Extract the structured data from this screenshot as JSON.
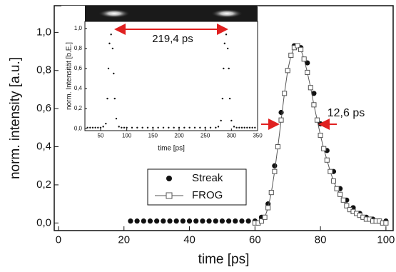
{
  "chart_data": [
    {
      "type": "scatter",
      "xlabel": "time [ps]",
      "ylabel": "norm. intensity [a.u.]",
      "annotations": [
        "12,6 ps"
      ],
      "xlim": [
        -1.3,
        102.2
      ],
      "ylim": [
        -0.04,
        1.14
      ],
      "xticks": [
        0,
        20,
        40,
        60,
        80,
        100
      ],
      "yticks": [
        {
          "value": 0,
          "label": "0,0"
        },
        {
          "value": 0.2,
          "label": "0,2"
        },
        {
          "value": 0.4,
          "label": "0,4"
        },
        {
          "value": 0.6,
          "label": "0,6"
        },
        {
          "value": 0.8,
          "label": "0,8"
        },
        {
          "value": 1.0,
          "label": "1,0"
        }
      ],
      "series": [
        {
          "name": "Streak",
          "color": "#111111",
          "marker": "circle",
          "line": false,
          "x": [
            22,
            24,
            26,
            28,
            30,
            32,
            34,
            36,
            38,
            40,
            42,
            44,
            46,
            48,
            50,
            52,
            54,
            56,
            58,
            60,
            62,
            64,
            66,
            68,
            70,
            72,
            74,
            76,
            78,
            80,
            82,
            84,
            86,
            88,
            90,
            92,
            94,
            96,
            98,
            100
          ],
          "values": [
            0.01,
            0.01,
            0.01,
            0.01,
            0.01,
            0.01,
            0.01,
            0.01,
            0.01,
            0.01,
            0.01,
            0.01,
            0.01,
            0.01,
            0.01,
            0.01,
            0.01,
            0.01,
            0.01,
            0.01,
            0.03,
            0.1,
            0.3,
            0.58,
            0.8,
            0.93,
            0.92,
            0.84,
            0.68,
            0.52,
            0.38,
            0.27,
            0.18,
            0.12,
            0.08,
            0.05,
            0.03,
            0.02,
            0.01,
            0.01
          ]
        },
        {
          "name": "FROG",
          "color": "#555555",
          "marker": "square",
          "line": true,
          "x": [
            60,
            61,
            62,
            63,
            64,
            65,
            66,
            67,
            68,
            69,
            70,
            71,
            72,
            73,
            74,
            75,
            76,
            77,
            78,
            79,
            80,
            81,
            82,
            83,
            84,
            85,
            86,
            87,
            88,
            89,
            90,
            91,
            92,
            93,
            94,
            95,
            96,
            97,
            98,
            99,
            100
          ],
          "values": [
            0,
            0,
            0.01,
            0.03,
            0.08,
            0.16,
            0.27,
            0.4,
            0.54,
            0.68,
            0.8,
            0.88,
            0.92,
            0.93,
            0.91,
            0.86,
            0.79,
            0.71,
            0.62,
            0.54,
            0.46,
            0.39,
            0.33,
            0.27,
            0.22,
            0.18,
            0.15,
            0.12,
            0.09,
            0.07,
            0.06,
            0.05,
            0.04,
            0.03,
            0.02,
            0.02,
            0.01,
            0.01,
            0.01,
            0,
            0
          ]
        }
      ]
    },
    {
      "type": "scatter",
      "xlabel": "time [ps]",
      "ylabel": "norm. Intensität [b.E.]",
      "annotations": [
        "219,4 ps"
      ],
      "xlim": [
        20,
        350
      ],
      "ylim": [
        -0.02,
        1.07
      ],
      "xticks": [
        50,
        100,
        150,
        200,
        250,
        300,
        350
      ],
      "yticks": [
        {
          "value": 0,
          "label": "0,0"
        },
        {
          "value": 0.2,
          "label": "0,2"
        },
        {
          "value": 0.4,
          "label": "0,4"
        },
        {
          "value": 0.6,
          "label": "0,6"
        },
        {
          "value": 0.8,
          "label": "0,8"
        },
        {
          "value": 1.0,
          "label": "1,0"
        }
      ],
      "series": [
        {
          "color": "#111111",
          "marker": "circle",
          "line": false,
          "x": [
            25,
            30,
            35,
            40,
            45,
            50,
            55,
            60,
            63,
            65,
            67,
            70,
            73,
            75,
            77,
            80,
            85,
            90,
            95,
            100,
            110,
            120,
            130,
            140,
            150,
            160,
            170,
            180,
            190,
            200,
            210,
            220,
            230,
            240,
            250,
            260,
            270,
            275,
            280,
            283,
            285,
            287,
            290,
            293,
            295,
            297,
            300,
            305,
            310,
            315,
            320,
            325,
            330,
            335,
            340,
            345
          ],
          "values": [
            0.01,
            0.01,
            0.01,
            0.01,
            0.01,
            0.01,
            0.02,
            0.05,
            0.3,
            0.6,
            0.85,
            0.94,
            0.8,
            0.55,
            0.3,
            0.1,
            0.02,
            0.01,
            0.01,
            0.01,
            0.01,
            0.01,
            0.01,
            0.01,
            0.01,
            0.01,
            0.01,
            0.01,
            0.01,
            0.01,
            0.01,
            0.01,
            0.01,
            0.01,
            0.01,
            0.01,
            0.01,
            0.02,
            0.08,
            0.3,
            0.6,
            0.85,
            0.94,
            0.8,
            0.6,
            0.3,
            0.08,
            0.02,
            0.01,
            0.01,
            0.01,
            0.01,
            0.01,
            0.01,
            0.01,
            0.01
          ]
        }
      ]
    }
  ]
}
